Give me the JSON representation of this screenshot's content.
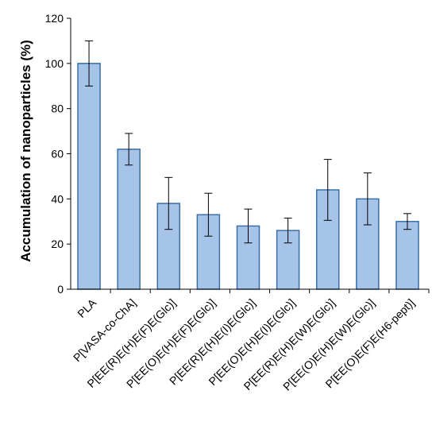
{
  "chart_data": {
    "type": "bar",
    "title": "",
    "xlabel": "",
    "ylabel": "Accumulation of nanoparticles (%)",
    "ylim": [
      0,
      120
    ],
    "yticks": [
      0,
      20,
      40,
      60,
      80,
      100,
      120
    ],
    "grid": false,
    "bar_color": "#a6c4e8",
    "bar_edge_color": "#3a6fa8",
    "categories": [
      "PLA",
      "P[VASA-co-ChA]",
      "P[EE(R)E(H)E(F)E(Glc)]",
      "P[EE(O)E(H)E(F)E(Glc)]",
      "P[EE(R)E(H)E(I)E(Glc)]",
      "P[EE(O)E(H)E(I)E(Glc)]",
      "P[EE(R)E(H)E(W)E(Glc)]",
      "P[EE(O)E(H)E(W)E(Glc)]",
      "P[EE(O)E(F)E(H6-pept)]"
    ],
    "values": [
      100,
      62,
      38,
      33,
      28,
      26,
      44,
      40,
      30
    ],
    "errors": [
      10,
      7,
      11.5,
      9.5,
      7.5,
      5.5,
      13.5,
      11.5,
      3.5
    ]
  }
}
